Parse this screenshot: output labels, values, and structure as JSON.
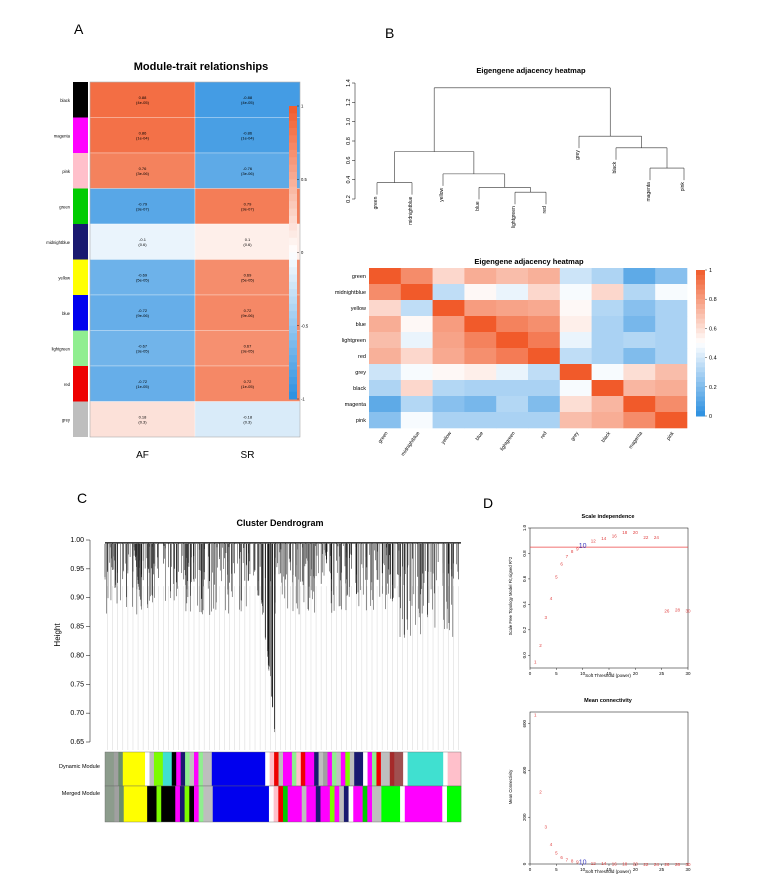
{
  "panels": {
    "a": "A",
    "b": "B",
    "c": "C",
    "d": "D"
  },
  "colors": {
    "high": "#f15a2a",
    "low": "#2b8fe0",
    "mid": "#ffffff",
    "threshold_line": "#ee4444",
    "point_text": "#e04040",
    "highlight": "#4040c0"
  },
  "chart_data": [
    {
      "id": "module_trait",
      "type": "heatmap",
      "title": "Module-trait relationships",
      "columns": [
        "AF",
        "SR"
      ],
      "rows": [
        {
          "name": "black",
          "color": "#000000",
          "cells": [
            {
              "r": "0.88",
              "p": "(4e-05)",
              "v": 0.88
            },
            {
              "r": "-0.88",
              "p": "(4e-05)",
              "v": -0.88
            }
          ]
        },
        {
          "name": "magenta",
          "color": "#ff00ff",
          "cells": [
            {
              "r": "0.86",
              "p": "(1e-04)",
              "v": 0.86
            },
            {
              "r": "-0.86",
              "p": "(1e-04)",
              "v": -0.86
            }
          ]
        },
        {
          "name": "pink",
          "color": "#ffc0cb",
          "cells": [
            {
              "r": "0.76",
              "p": "(3e-06)",
              "v": 0.76
            },
            {
              "r": "-0.76",
              "p": "(3e-06)",
              "v": -0.76
            }
          ]
        },
        {
          "name": "green",
          "color": "#00cc00",
          "cells": [
            {
              "r": "-0.79",
              "p": "(3e-07)",
              "v": -0.79
            },
            {
              "r": "0.79",
              "p": "(3e-07)",
              "v": 0.79
            }
          ]
        },
        {
          "name": "midnightblue",
          "color": "#191970",
          "cells": [
            {
              "r": "-0.1",
              "p": "(0.6)",
              "v": -0.1
            },
            {
              "r": "0.1",
              "p": "(0.6)",
              "v": 0.1
            }
          ]
        },
        {
          "name": "yellow",
          "color": "#ffff00",
          "cells": [
            {
              "r": "-0.69",
              "p": "(5e-05)",
              "v": -0.69
            },
            {
              "r": "0.69",
              "p": "(5e-05)",
              "v": 0.69
            }
          ]
        },
        {
          "name": "blue",
          "color": "#0000ee",
          "cells": [
            {
              "r": "-0.72",
              "p": "(9e-06)",
              "v": -0.72
            },
            {
              "r": "0.72",
              "p": "(9e-06)",
              "v": 0.72
            }
          ]
        },
        {
          "name": "lightgreen",
          "color": "#90ee90",
          "cells": [
            {
              "r": "-0.67",
              "p": "(3e-05)",
              "v": -0.67
            },
            {
              "r": "0.67",
              "p": "(3e-05)",
              "v": 0.67
            }
          ]
        },
        {
          "name": "red",
          "color": "#ee0000",
          "cells": [
            {
              "r": "-0.72",
              "p": "(1e-05)",
              "v": -0.72
            },
            {
              "r": "0.72",
              "p": "(1e-05)",
              "v": 0.72
            }
          ]
        },
        {
          "name": "grey",
          "color": "#bebebe",
          "cells": [
            {
              "r": "0.18",
              "p": "(0.3)",
              "v": 0.18
            },
            {
              "r": "-0.18",
              "p": "(0.3)",
              "v": -0.18
            }
          ]
        }
      ],
      "colorbar_ticks": [
        "1",
        "0.5",
        "0",
        "-0.5",
        "-1"
      ],
      "zlim": [
        -1,
        1
      ]
    },
    {
      "id": "eigengene_dendrogram",
      "type": "dendrogram",
      "title": "Eigengene adjacency heatmap",
      "y_ticks": [
        "0.2",
        "0.4",
        "0.6",
        "0.8",
        "1.0",
        "1.2",
        "1.4"
      ],
      "ylim": [
        0.2,
        1.4
      ],
      "leaves": [
        "green",
        "midnightblue",
        "yellow",
        "blue",
        "lightgreen",
        "red",
        "grey",
        "black",
        "magenta",
        "pink"
      ],
      "merges": [
        {
          "a": "lightgreen",
          "b": "red",
          "h": 0.27
        },
        {
          "a": "green",
          "b": "midnightblue",
          "h": 0.37
        },
        {
          "a": "m1",
          "b": "blue",
          "h": 0.32
        },
        {
          "a": "yellow",
          "b": "m3",
          "h": 0.46
        },
        {
          "a": "magenta",
          "b": "pink",
          "h": 0.52
        },
        {
          "a": "black",
          "b": "m5",
          "h": 0.73
        },
        {
          "a": "m2",
          "b": "m4",
          "h": 0.69
        },
        {
          "a": "grey",
          "b": "m6",
          "h": 0.85
        },
        {
          "a": "m7",
          "b": "m8",
          "h": 1.35
        }
      ]
    },
    {
      "id": "eigengene_heatmap",
      "type": "heatmap",
      "title": "Eigengene adjacency heatmap",
      "row_labels": [
        "green",
        "midnightblue",
        "yellow",
        "blue",
        "lightgreen",
        "red",
        "grey",
        "black",
        "magenta",
        "pink"
      ],
      "col_labels": [
        "green",
        "midnightblue",
        "yellow",
        "blue",
        "lightgreen",
        "red",
        "grey",
        "black",
        "magenta",
        "pink"
      ],
      "values": [
        [
          1.0,
          0.85,
          0.62,
          0.75,
          0.7,
          0.74,
          0.38,
          0.31,
          0.12,
          0.22
        ],
        [
          0.85,
          1.0,
          0.35,
          0.52,
          0.45,
          0.62,
          0.48,
          0.62,
          0.32,
          0.48
        ],
        [
          0.62,
          0.35,
          1.0,
          0.8,
          0.78,
          0.76,
          0.52,
          0.32,
          0.22,
          0.3
        ],
        [
          0.75,
          0.52,
          0.8,
          1.0,
          0.88,
          0.84,
          0.55,
          0.3,
          0.18,
          0.3
        ],
        [
          0.7,
          0.45,
          0.78,
          0.88,
          1.0,
          0.9,
          0.45,
          0.3,
          0.32,
          0.3
        ],
        [
          0.74,
          0.62,
          0.76,
          0.84,
          0.9,
          1.0,
          0.35,
          0.3,
          0.2,
          0.3
        ],
        [
          0.38,
          0.48,
          0.52,
          0.55,
          0.45,
          0.35,
          1.0,
          0.48,
          0.6,
          0.7
        ],
        [
          0.31,
          0.62,
          0.32,
          0.3,
          0.3,
          0.3,
          0.48,
          1.0,
          0.72,
          0.75
        ],
        [
          0.12,
          0.32,
          0.22,
          0.18,
          0.32,
          0.2,
          0.6,
          0.72,
          1.0,
          0.85
        ],
        [
          0.22,
          0.48,
          0.3,
          0.3,
          0.3,
          0.3,
          0.7,
          0.75,
          0.85,
          1.0
        ]
      ],
      "colorbar_ticks": [
        "1",
        "0.8",
        "0.6",
        "0.4",
        "0.2",
        "0"
      ],
      "zlim": [
        0,
        1
      ]
    },
    {
      "id": "cluster_dendrogram",
      "type": "dendrogram",
      "title": "Cluster Dendrogram",
      "ylabel": "Height",
      "y_ticks": [
        "1.00",
        "0.95",
        "0.90",
        "0.85",
        "0.80",
        "0.75",
        "0.70",
        "0.65"
      ],
      "ylim": [
        0.65,
        1.0
      ],
      "row_labels": [
        "Dynamic Module",
        "Merged Module"
      ],
      "module_strips": {
        "dynamic": [
          [
            "#8c9c8c",
            2
          ],
          [
            "#a0a0a0",
            1
          ],
          [
            "#6b8e6b",
            1
          ],
          [
            "#ffff00",
            5
          ],
          [
            "#ffffff",
            1
          ],
          [
            "#bebebe",
            1
          ],
          [
            "#7cfc00",
            2
          ],
          [
            "#40e0d0",
            2
          ],
          [
            "#000000",
            1
          ],
          [
            "#ff00ff",
            1
          ],
          [
            "#191970",
            1
          ],
          [
            "#90ee90",
            1
          ],
          [
            "#c0c0c0",
            1
          ],
          [
            "#ff00ff",
            1
          ],
          [
            "#90ee90",
            1
          ],
          [
            "#bebebe",
            2
          ],
          [
            "#0000ee",
            12
          ],
          [
            "#ffffff",
            1
          ],
          [
            "#ffc0cb",
            1
          ],
          [
            "#ee0000",
            1
          ],
          [
            "#bebebe",
            1
          ],
          [
            "#ff00ff",
            2
          ],
          [
            "#90ee90",
            1
          ],
          [
            "#ffc0cb",
            1
          ],
          [
            "#ee0000",
            1
          ],
          [
            "#ff00ff",
            2
          ],
          [
            "#191970",
            1
          ],
          [
            "#bebebe",
            1
          ],
          [
            "#a0a0a0",
            1
          ],
          [
            "#ff00ff",
            1
          ],
          [
            "#90ee90",
            1
          ],
          [
            "#c0c0c0",
            1
          ],
          [
            "#ff00ff",
            1
          ],
          [
            "#7cfc00",
            1
          ],
          [
            "#bebebe",
            1
          ],
          [
            "#191970",
            2
          ],
          [
            "#ffffff",
            1
          ],
          [
            "#ff00ff",
            1
          ],
          [
            "#90ee90",
            1
          ],
          [
            "#ee0000",
            1
          ],
          [
            "#bebebe",
            2
          ],
          [
            "#a52a2a",
            1
          ],
          [
            "#a05050",
            2
          ],
          [
            "#ffffff",
            1
          ],
          [
            "#40e0d0",
            8
          ],
          [
            "#ffffff",
            1
          ],
          [
            "#ffc0cb",
            3
          ]
        ],
        "merged": [
          [
            "#8c9c8c",
            2
          ],
          [
            "#a0a0a0",
            1
          ],
          [
            "#6b8e6b",
            1
          ],
          [
            "#ffff00",
            5
          ],
          [
            "#000000",
            2
          ],
          [
            "#7cfc00",
            1
          ],
          [
            "#000000",
            3
          ],
          [
            "#ff00ff",
            1
          ],
          [
            "#191970",
            1
          ],
          [
            "#7cfc00",
            1
          ],
          [
            "#000000",
            1
          ],
          [
            "#ff00ff",
            1
          ],
          [
            "#90ee90",
            1
          ],
          [
            "#bebebe",
            2
          ],
          [
            "#0000ee",
            12
          ],
          [
            "#ffffff",
            1
          ],
          [
            "#ffc0cb",
            1
          ],
          [
            "#ee0000",
            1
          ],
          [
            "#00cc00",
            1
          ],
          [
            "#ff00ff",
            3
          ],
          [
            "#bebebe",
            1
          ],
          [
            "#ff00ff",
            2
          ],
          [
            "#191970",
            1
          ],
          [
            "#ff00ff",
            2
          ],
          [
            "#7cfc00",
            1
          ],
          [
            "#ff00ff",
            1
          ],
          [
            "#bebebe",
            1
          ],
          [
            "#191970",
            1
          ],
          [
            "#ffffff",
            1
          ],
          [
            "#ff00ff",
            2
          ],
          [
            "#00cc00",
            1
          ],
          [
            "#ff00ff",
            1
          ],
          [
            "#bebebe",
            2
          ],
          [
            "#00ff00",
            4
          ],
          [
            "#ffffff",
            1
          ],
          [
            "#ff00ff",
            8
          ],
          [
            "#ffffff",
            1
          ],
          [
            "#00ff00",
            3
          ]
        ]
      }
    },
    {
      "id": "scale_independence",
      "type": "scatter",
      "title": "Scale independence",
      "xlabel": "Soft Threshold (power)",
      "ylabel": "Scale Free Topology Model Fit,signed R^2",
      "x_ticks": [
        "0",
        "5",
        "10",
        "15",
        "20",
        "25",
        "30"
      ],
      "y_ticks": [
        "0.0",
        "0.2",
        "0.4",
        "0.6",
        "0.8",
        "1.0"
      ],
      "xlim": [
        0,
        30
      ],
      "ylim": [
        -0.1,
        1.0
      ],
      "h_line": 0.85,
      "highlight": "10",
      "x": [
        1,
        2,
        3,
        4,
        5,
        6,
        7,
        8,
        9,
        10,
        12,
        14,
        16,
        18,
        20,
        22,
        24,
        26,
        28,
        30
      ],
      "y": [
        -0.05,
        0.08,
        0.3,
        0.45,
        0.62,
        0.72,
        0.78,
        0.82,
        0.84,
        0.86,
        0.9,
        0.92,
        0.94,
        0.97,
        0.97,
        0.93,
        0.93,
        0.35,
        0.36,
        0.35
      ],
      "labels": [
        "1",
        "2",
        "3",
        "4",
        "5",
        "6",
        "7",
        "8",
        "9",
        "10",
        "12",
        "14",
        "16",
        "18",
        "20",
        "22",
        "24",
        "26",
        "28",
        "30"
      ]
    },
    {
      "id": "mean_connectivity",
      "type": "scatter",
      "title": "Mean connectivity",
      "xlabel": "Soft Threshold (power)",
      "ylabel": "Mean Connectivity",
      "x_ticks": [
        "0",
        "5",
        "10",
        "15",
        "20",
        "25",
        "30"
      ],
      "y_ticks": [
        "0",
        "200",
        "400",
        "600"
      ],
      "xlim": [
        0,
        30
      ],
      "ylim": [
        0,
        650
      ],
      "highlight": "10",
      "x": [
        1,
        2,
        3,
        4,
        5,
        6,
        7,
        8,
        9,
        10,
        12,
        14,
        16,
        18,
        20,
        22,
        24,
        26,
        28,
        30
      ],
      "y": [
        640,
        310,
        160,
        85,
        50,
        30,
        20,
        14,
        10,
        7,
        5,
        4,
        3,
        2,
        2,
        1,
        1,
        1,
        1,
        1
      ],
      "labels": [
        "1",
        "2",
        "3",
        "4",
        "5",
        "6",
        "7",
        "8",
        "9",
        "10",
        "12",
        "14",
        "16",
        "18",
        "20",
        "22",
        "24",
        "26",
        "28",
        "30"
      ]
    }
  ]
}
